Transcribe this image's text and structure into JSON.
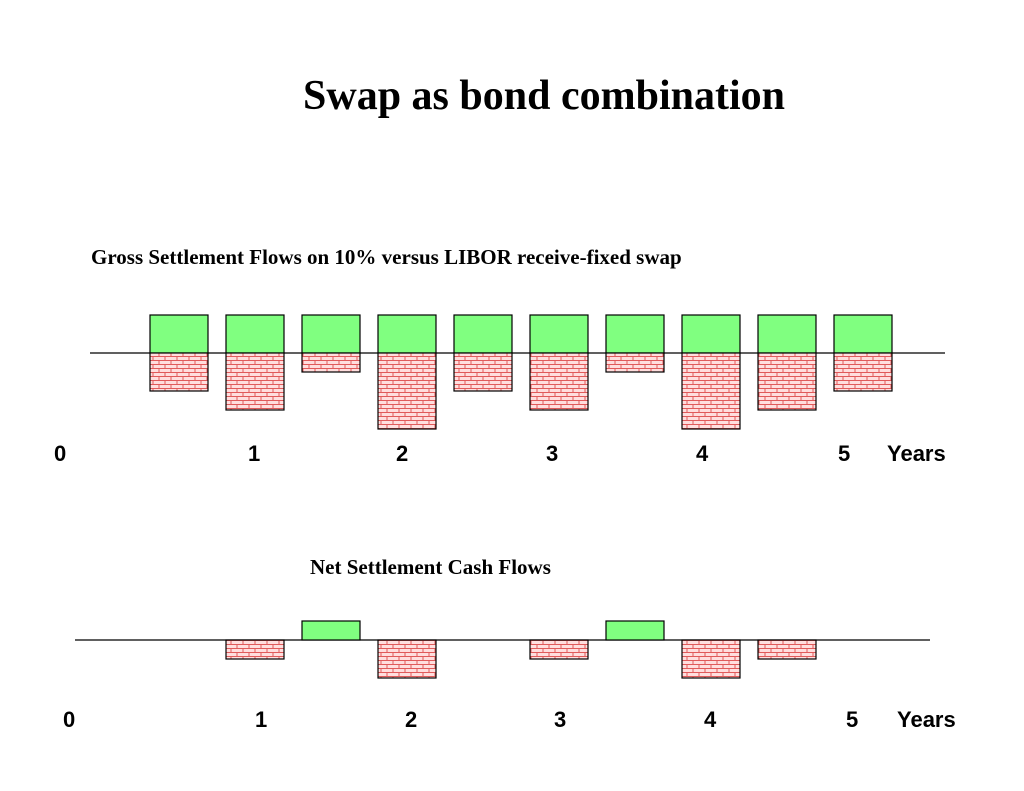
{
  "title": "Swap as bond combination",
  "colors": {
    "receive": "#80ff80",
    "pay_fill": "#ffdede",
    "pay_brick": "#e05a5a",
    "outline": "#000000"
  },
  "gross": {
    "title": "Gross Settlement Flows on 10% versus LIBOR receive-fixed swap",
    "axis_labels": [
      "0",
      "1",
      "2",
      "3",
      "4",
      "5"
    ],
    "axis_unit": "Years",
    "received": [
      2,
      2,
      2,
      2,
      2,
      2,
      2,
      2,
      2,
      2
    ],
    "paid": [
      2,
      3,
      1,
      4,
      2,
      3,
      1,
      4,
      3,
      2
    ]
  },
  "net": {
    "title": "Net Settlement Cash Flows",
    "axis_labels": [
      "0",
      "1",
      "2",
      "3",
      "4",
      "5"
    ],
    "axis_unit": "Years",
    "flows": [
      0,
      -1,
      1,
      -2,
      0,
      -1,
      1,
      -2,
      -1,
      0
    ]
  }
}
